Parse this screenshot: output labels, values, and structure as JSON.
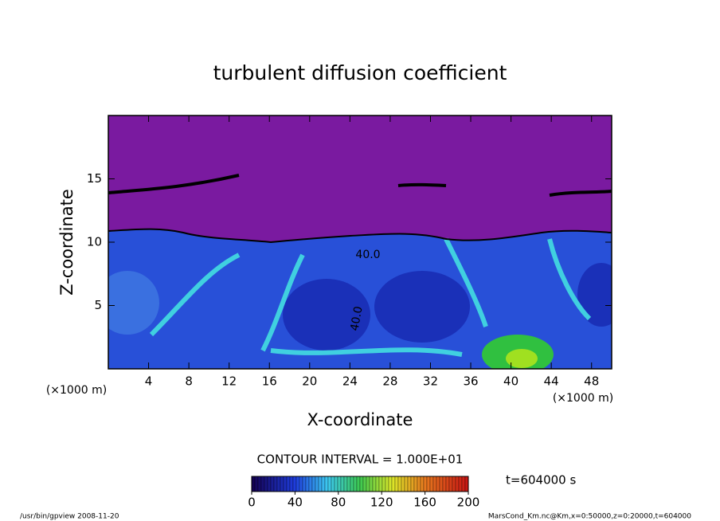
{
  "chart_data": {
    "type": "contour",
    "title": "turbulent diffusion coefficient",
    "x_label": "X-coordinate",
    "y_label": "Z-coordinate",
    "x_unit": "(×1000 m)",
    "y_unit": "(×1000 m)",
    "xlim": [
      0,
      50
    ],
    "xticks": [
      4,
      8,
      12,
      16,
      20,
      24,
      28,
      32,
      36,
      40,
      44,
      48
    ],
    "ylim": [
      0,
      20
    ],
    "yticks": [
      5,
      10,
      15
    ],
    "contour_interval": "CONTOUR INTERVAL = 1.000E+01",
    "contour_labels": [
      "40.0",
      "40.0"
    ],
    "clim": [
      0,
      200
    ],
    "cticks": [
      0,
      40,
      80,
      120,
      160,
      200
    ],
    "time_label": "t=604000 s",
    "footer_left": "/usr/bin/gpview  2008-11-20",
    "footer_right": "MarsCond_Km.nc@Km,x=0:50000,z=0:20000,t=604000"
  }
}
